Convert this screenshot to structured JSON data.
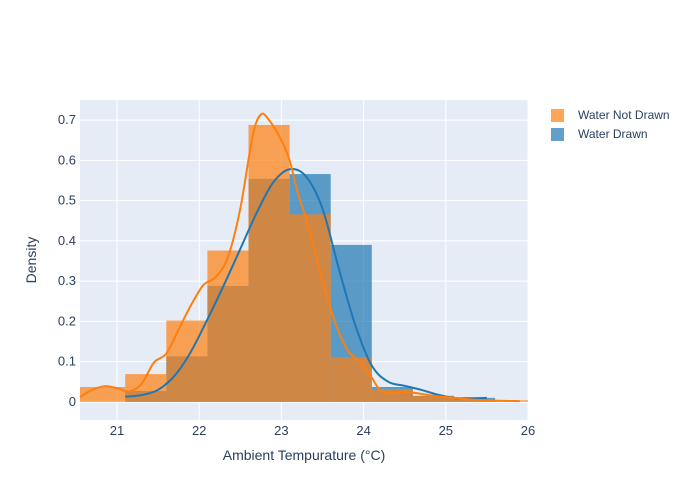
{
  "chart_data": {
    "type": "histogram",
    "xlabel": "Ambient Tempurature (°C)",
    "ylabel": "Density",
    "xlim": [
      20.55,
      26.0
    ],
    "ylim": [
      -0.045,
      0.75
    ],
    "x_ticks": [
      21,
      22,
      23,
      24,
      25,
      26
    ],
    "y_ticks": [
      0,
      0.1,
      0.2,
      0.3,
      0.4,
      0.5,
      0.6,
      0.7
    ],
    "x_tick_labels": [
      "21",
      "22",
      "23",
      "24",
      "25",
      "26"
    ],
    "y_tick_labels": [
      "0",
      "0.1",
      "0.2",
      "0.3",
      "0.4",
      "0.5",
      "0.6",
      "0.7"
    ],
    "grid": true,
    "legend_position": "top-right",
    "series": [
      {
        "name": "Water Drawn",
        "color": "#1f77b4",
        "bins": [
          {
            "x0": 21.1,
            "x1": 21.6,
            "y": 0.027
          },
          {
            "x0": 21.6,
            "x1": 22.1,
            "y": 0.113
          },
          {
            "x0": 22.1,
            "x1": 22.6,
            "y": 0.288
          },
          {
            "x0": 22.6,
            "x1": 23.1,
            "y": 0.554
          },
          {
            "x0": 23.1,
            "x1": 23.6,
            "y": 0.566
          },
          {
            "x0": 23.6,
            "x1": 24.1,
            "y": 0.39
          },
          {
            "x0": 24.1,
            "x1": 24.6,
            "y": 0.037
          },
          {
            "x0": 24.6,
            "x1": 25.1,
            "y": 0.015
          },
          {
            "x0": 25.1,
            "x1": 25.6,
            "y": 0.01
          }
        ],
        "curve": [
          [
            21.1,
            0.013
          ],
          [
            21.3,
            0.017
          ],
          [
            21.5,
            0.03
          ],
          [
            21.7,
            0.065
          ],
          [
            21.9,
            0.125
          ],
          [
            22.1,
            0.205
          ],
          [
            22.3,
            0.29
          ],
          [
            22.5,
            0.38
          ],
          [
            22.7,
            0.47
          ],
          [
            22.9,
            0.545
          ],
          [
            23.1,
            0.578
          ],
          [
            23.3,
            0.56
          ],
          [
            23.5,
            0.48
          ],
          [
            23.7,
            0.33
          ],
          [
            23.9,
            0.19
          ],
          [
            24.1,
            0.09
          ],
          [
            24.3,
            0.05
          ],
          [
            24.5,
            0.04
          ],
          [
            24.7,
            0.03
          ],
          [
            24.9,
            0.018
          ],
          [
            25.1,
            0.01
          ],
          [
            25.3,
            0.009
          ],
          [
            25.5,
            0.01
          ]
        ]
      },
      {
        "name": "Water Not Drawn",
        "color": "#ff7f0e",
        "bins": [
          {
            "x0": 20.55,
            "x1": 21.1,
            "y": 0.037
          },
          {
            "x0": 21.1,
            "x1": 21.6,
            "y": 0.069
          },
          {
            "x0": 21.6,
            "x1": 22.1,
            "y": 0.202
          },
          {
            "x0": 22.1,
            "x1": 22.6,
            "y": 0.376
          },
          {
            "x0": 22.6,
            "x1": 23.1,
            "y": 0.688
          },
          {
            "x0": 23.1,
            "x1": 23.6,
            "y": 0.466
          },
          {
            "x0": 23.6,
            "x1": 24.1,
            "y": 0.111
          },
          {
            "x0": 24.1,
            "x1": 24.6,
            "y": 0.032
          },
          {
            "x0": 24.6,
            "x1": 25.1,
            "y": 0.015
          },
          {
            "x0": 25.1,
            "x1": 25.6,
            "y": 0.005
          },
          {
            "x0": 25.6,
            "x1": 26.0,
            "y": 0.004
          }
        ],
        "curve": [
          [
            20.55,
            0.012
          ],
          [
            20.7,
            0.03
          ],
          [
            20.85,
            0.039
          ],
          [
            21.0,
            0.034
          ],
          [
            21.15,
            0.026
          ],
          [
            21.3,
            0.045
          ],
          [
            21.45,
            0.098
          ],
          [
            21.6,
            0.12
          ],
          [
            21.75,
            0.18
          ],
          [
            21.9,
            0.24
          ],
          [
            22.05,
            0.29
          ],
          [
            22.2,
            0.31
          ],
          [
            22.35,
            0.36
          ],
          [
            22.5,
            0.48
          ],
          [
            22.65,
            0.66
          ],
          [
            22.75,
            0.714
          ],
          [
            22.85,
            0.7
          ],
          [
            23.0,
            0.65
          ],
          [
            23.1,
            0.6
          ],
          [
            23.2,
            0.52
          ],
          [
            23.35,
            0.42
          ],
          [
            23.5,
            0.3
          ],
          [
            23.65,
            0.2
          ],
          [
            23.8,
            0.13
          ],
          [
            23.95,
            0.1
          ],
          [
            24.1,
            0.06
          ],
          [
            24.2,
            0.03
          ],
          [
            24.35,
            0.022
          ],
          [
            24.5,
            0.025
          ],
          [
            24.7,
            0.02
          ],
          [
            24.9,
            0.014
          ],
          [
            25.1,
            0.01
          ],
          [
            25.3,
            0.006
          ],
          [
            25.6,
            0.003
          ],
          [
            25.9,
            0.002
          ]
        ]
      }
    ]
  }
}
